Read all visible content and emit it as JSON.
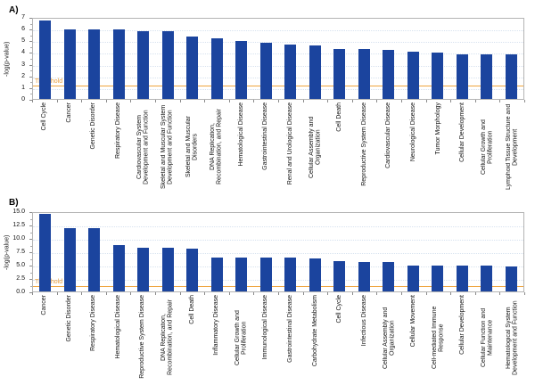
{
  "colors": {
    "bar": "#1b449e",
    "threshold": "#efa53f",
    "grid": "#d7e2ef",
    "axis": "#b4b4b4"
  },
  "chart_data": [
    {
      "type": "bar",
      "panel_label": "A)",
      "ylabel": "-log(p-value)",
      "ylim": [
        0,
        7
      ],
      "yticks": [
        {
          "label": "0",
          "value": 0
        },
        {
          "label": "1",
          "value": 1
        },
        {
          "label": "2",
          "value": 2
        },
        {
          "label": "3",
          "value": 3
        },
        {
          "label": "4",
          "value": 4
        },
        {
          "label": "5",
          "value": 5
        },
        {
          "label": "6",
          "value": 6
        },
        {
          "label": "7",
          "value": 7
        }
      ],
      "grid": true,
      "threshold": {
        "label": "Threshold",
        "value": 1.3
      },
      "categories": [
        "Cell Cycle",
        "Cancer",
        "Genetic Disorder",
        "Respiratory Disease",
        "Cardiovascular System Development and Function",
        "Skeletal and Muscular System Development and Function",
        "Skeletal and Muscular Disorders",
        "DNA Replication, Recombination, and Repair",
        "Hematological Disease",
        "Gastrointestinal Disease",
        "Renal and Urological Disease",
        "Cellular Assembly and Organization",
        "Cell Death",
        "Reproductive System Disease",
        "Cardiovascular Disease",
        "Neurological Disease",
        "Tumor Morphology",
        "Cellular Development",
        "Cellular Growth and Proliferation",
        "Lymphoid Tissue Structure and Development"
      ],
      "values": [
        6.7,
        5.9,
        5.9,
        5.9,
        5.75,
        5.75,
        5.3,
        5.15,
        4.95,
        4.8,
        4.65,
        4.6,
        4.25,
        4.25,
        4.2,
        4.05,
        3.95,
        3.8,
        3.8,
        3.8
      ]
    },
    {
      "type": "bar",
      "panel_label": "B)",
      "ylabel": "-log(p-value)",
      "ylim": [
        0,
        15
      ],
      "yticks": [
        {
          "label": "0.0",
          "value": 0
        },
        {
          "label": "2.5",
          "value": 2.5
        },
        {
          "label": "5.0",
          "value": 5
        },
        {
          "label": "7.5",
          "value": 7.5
        },
        {
          "label": "10.0",
          "value": 10
        },
        {
          "label": "12.5",
          "value": 12.5
        },
        {
          "label": "15.0",
          "value": 15
        }
      ],
      "grid": true,
      "threshold": {
        "label": "Threshold",
        "value": 1.3
      },
      "categories": [
        "Cancer",
        "Genetic Disorder",
        "Respiratory Disease",
        "Hematological Disease",
        "Reproductive System Disease",
        "DNA Replication, Recombination, and Repair",
        "Cell Death",
        "Inflammatory Disease",
        "Cellular Growth and Proliferation",
        "Immunological Disease",
        "Gastrointestinal Disease",
        "Carbohydrate Metabolism",
        "Cell Cycle",
        "Infectious Disease",
        "Cellular Assembly and Organization",
        "Cellular Movement",
        "Cell-mediated Immune Response",
        "Cellular Development",
        "Cellular Function and Maintenance",
        "Hematological System Development and Function"
      ],
      "values": [
        14.5,
        11.9,
        11.9,
        8.6,
        8.2,
        8.1,
        8.0,
        6.4,
        6.35,
        6.3,
        6.3,
        6.15,
        5.75,
        5.55,
        5.55,
        4.85,
        4.85,
        4.85,
        4.85,
        4.75
      ]
    }
  ]
}
